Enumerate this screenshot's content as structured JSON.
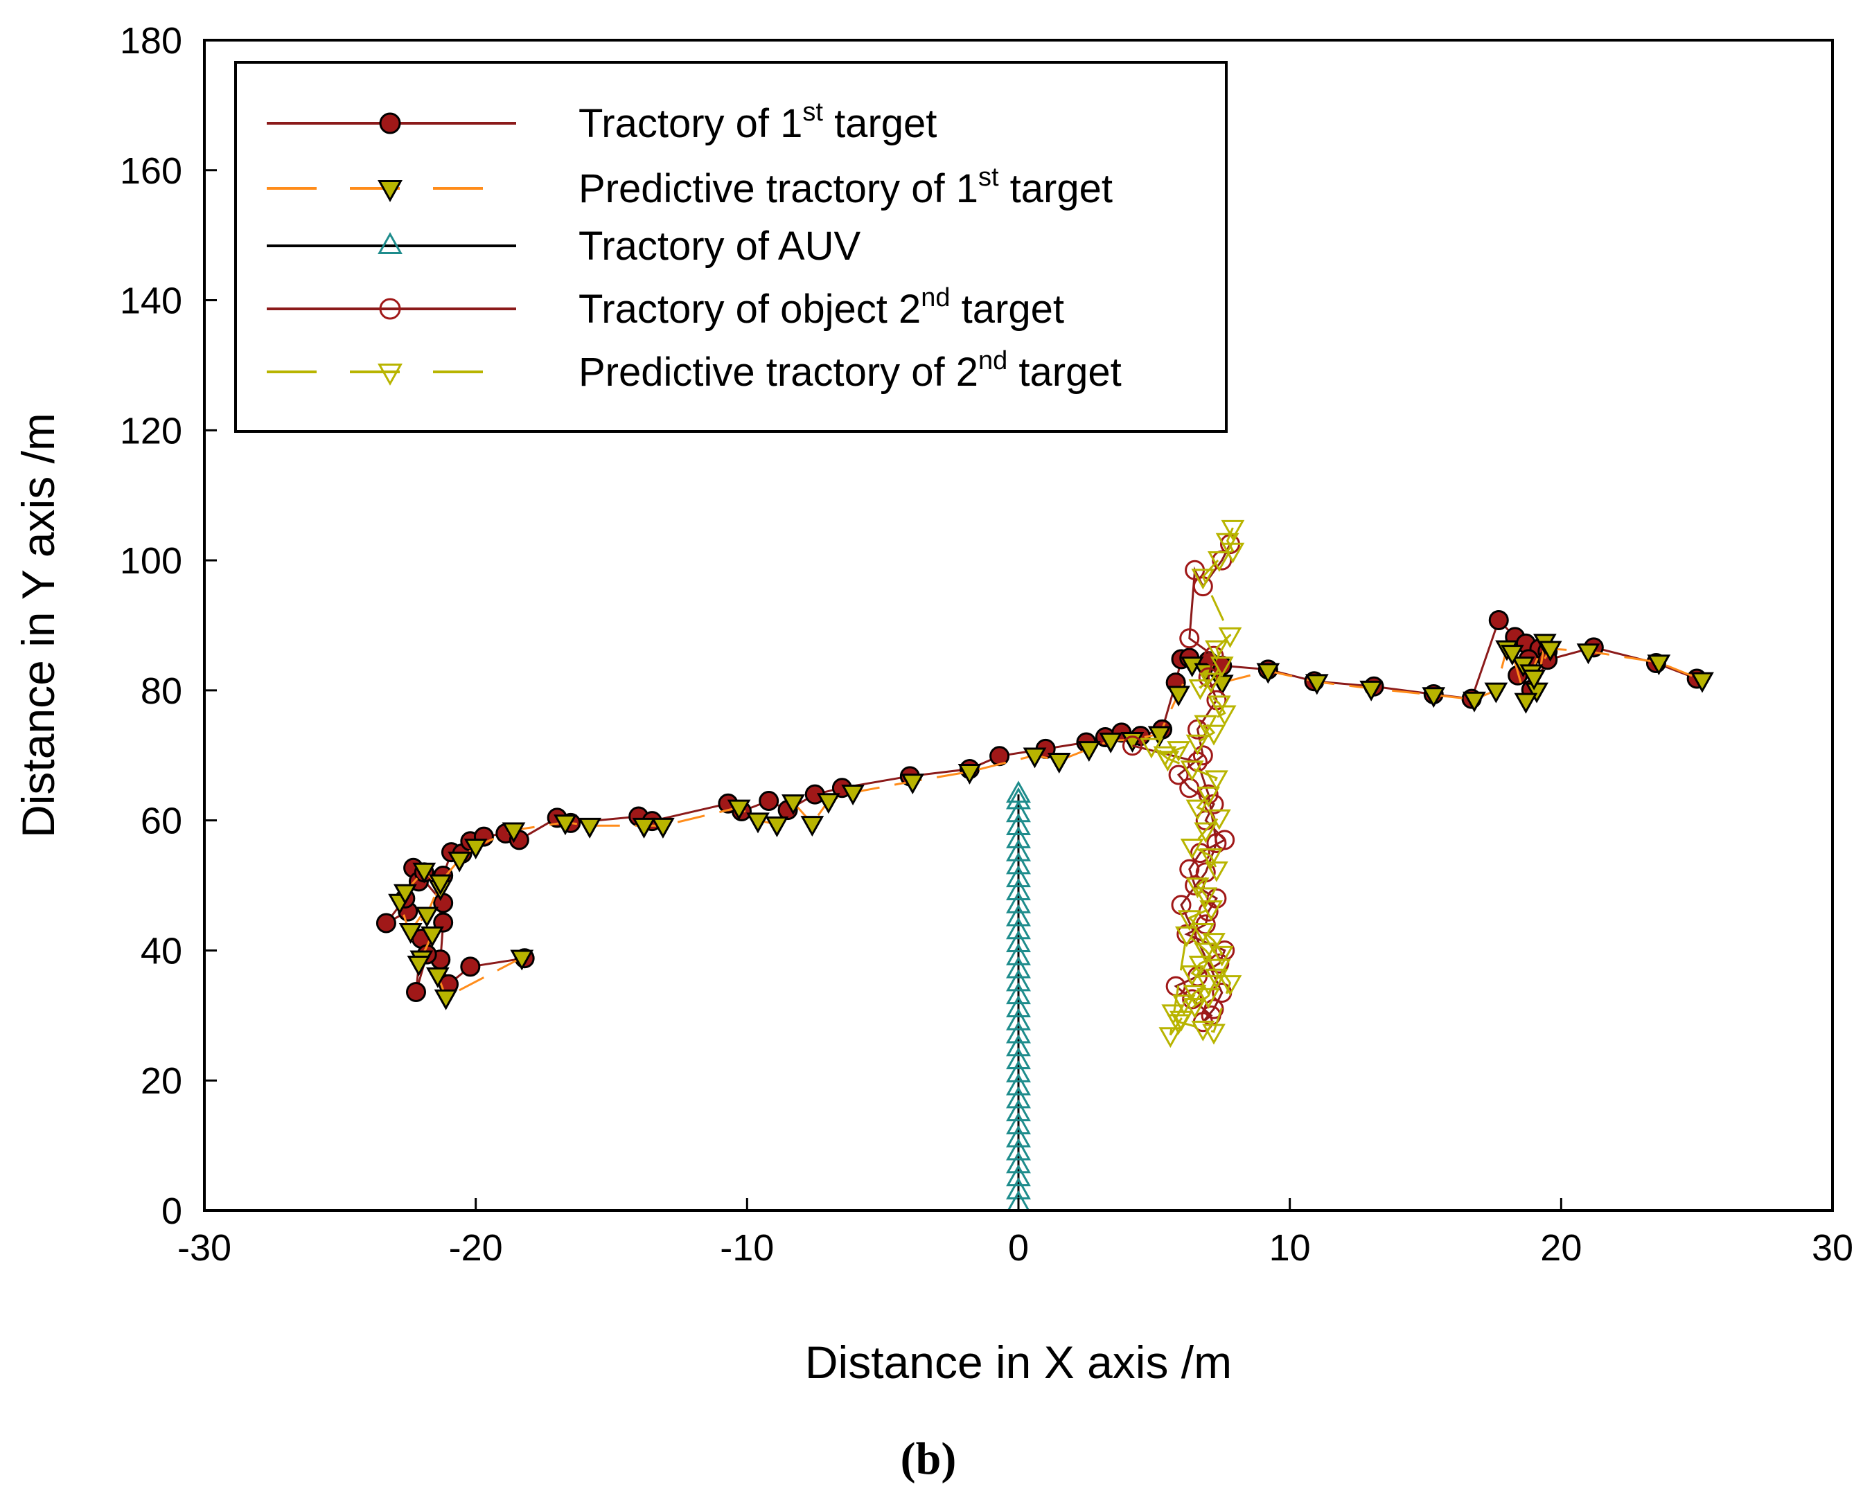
{
  "chart_data": {
    "type": "line",
    "title": "",
    "caption": "(b)",
    "xlabel": "Distance in X axis /m",
    "ylabel": "Distance in Y axis /m",
    "xlim": [
      -30,
      30
    ],
    "ylim": [
      0,
      180
    ],
    "xticks": [
      -30,
      -20,
      -10,
      0,
      10,
      20,
      30
    ],
    "yticks": [
      0,
      20,
      40,
      60,
      80,
      100,
      120,
      140,
      160,
      180
    ],
    "grid": false,
    "legend_position": "top-left",
    "colors": {
      "target1": "#8b1a1a",
      "target1_marker": "#a01818",
      "predict1": "#ff8c1a",
      "predict1_marker": "#b8b400",
      "auv": "#000000",
      "auv_marker": "#1e8c8c",
      "target2": "#8b1a1a",
      "target2_marker": "#a01818",
      "predict2": "#b8b400"
    },
    "series": [
      {
        "key": "target1",
        "name": "Tractory of 1",
        "sup": "st",
        "suffix": " target",
        "line": "solid",
        "marker": "circle-filled",
        "x": [
          -18.2,
          -20.2,
          -21.0,
          -21.3,
          -21.2,
          -22.0,
          -22.2,
          -21.8,
          -21.2,
          -22.3,
          -22.5,
          -23.3,
          -22.6,
          -22.1,
          -21.9,
          -21.2,
          -20.9,
          -20.5,
          -20.2,
          -19.7,
          -18.9,
          -18.4,
          -17.0,
          -16.5,
          -14.0,
          -13.5,
          -10.7,
          -10.2,
          -9.2,
          -8.5,
          -7.5,
          -6.5,
          -4.0,
          -1.8,
          -0.7,
          1.0,
          2.5,
          3.2,
          3.8,
          4.5,
          5.3,
          5.8,
          6.0,
          6.3,
          7.0,
          7.5,
          9.2,
          10.9,
          13.1,
          15.3,
          16.7,
          17.7,
          18.3,
          18.7,
          19.2,
          19.5,
          18.8,
          18.4,
          18.9,
          19.5,
          21.2,
          23.5,
          25.0
        ],
        "y": [
          38.8,
          37.5,
          34.8,
          38.6,
          44.3,
          41.8,
          33.6,
          39.4,
          47.3,
          52.7,
          46.0,
          44.2,
          48.0,
          50.6,
          52.0,
          51.5,
          55.1,
          54.9,
          56.8,
          57.5,
          58.0,
          57.0,
          60.4,
          59.6,
          60.6,
          59.9,
          62.6,
          61.4,
          63.0,
          61.6,
          64.0,
          65.0,
          66.8,
          67.9,
          69.9,
          71.0,
          72.0,
          72.8,
          73.5,
          73.0,
          74.0,
          81.2,
          84.8,
          85.0,
          84.5,
          83.8,
          83.2,
          81.4,
          80.6,
          79.4,
          78.7,
          90.8,
          88.2,
          87.2,
          86.4,
          86.0,
          84.8,
          82.3,
          80.1,
          84.7,
          86.6,
          84.2,
          81.8
        ]
      },
      {
        "key": "predict1",
        "name": "Predictive tractory of 1",
        "sup": "st",
        "suffix": " target",
        "line": "dash",
        "marker": "triangle-down-filled",
        "x": [
          -18.3,
          -21.1,
          -21.4,
          -22.0,
          -21.6,
          -22.1,
          -22.8,
          -22.6,
          -21.9,
          -21.3,
          -22.4,
          -21.8,
          -21.3,
          -20.6,
          -20.0,
          -18.6,
          -16.7,
          -15.8,
          -13.8,
          -13.1,
          -10.3,
          -9.6,
          -8.9,
          -8.3,
          -7.6,
          -7.0,
          -6.1,
          -3.9,
          -1.8,
          0.6,
          1.5,
          2.6,
          3.4,
          4.2,
          5.2,
          5.9,
          6.4,
          6.9,
          7.5,
          9.2,
          11.0,
          13.0,
          15.3,
          16.8,
          17.6,
          18.0,
          18.6,
          18.9,
          19.4,
          19.1,
          18.7,
          18.2,
          19.0,
          19.6,
          21.0,
          23.6,
          25.2
        ],
        "y": [
          38.9,
          32.8,
          36.2,
          38.8,
          42.5,
          38.0,
          47.5,
          49.0,
          52.3,
          49.6,
          43.0,
          45.5,
          50.5,
          54.0,
          56.0,
          58.5,
          59.7,
          59.2,
          59.2,
          59.2,
          62.0,
          60.0,
          59.4,
          62.8,
          59.5,
          63.0,
          64.3,
          66.0,
          67.5,
          70.0,
          69.2,
          71.0,
          72.3,
          72.4,
          73.3,
          79.5,
          84.0,
          83.0,
          81.2,
          83.0,
          81.3,
          80.3,
          79.3,
          78.6,
          80.0,
          86.5,
          84.0,
          82.8,
          87.5,
          80.0,
          78.4,
          85.8,
          82.0,
          86.4,
          86.0,
          84.3,
          81.6
        ]
      },
      {
        "key": "auv",
        "name": "Tractory of AUV",
        "sup": "",
        "suffix": "",
        "line": "solid",
        "marker": "triangle-up-open",
        "x": [
          0,
          0,
          0,
          0,
          0,
          0,
          0,
          0,
          0,
          0,
          0,
          0,
          0,
          0,
          0,
          0,
          0,
          0,
          0,
          0,
          0,
          0,
          0,
          0,
          0,
          0,
          0,
          0,
          0,
          0,
          0,
          0,
          0
        ],
        "y": [
          1,
          3,
          5,
          7,
          9,
          11,
          13,
          15,
          17,
          19,
          21,
          23,
          25,
          27,
          29,
          31,
          33,
          35,
          37,
          39,
          41,
          43,
          45,
          47,
          49,
          51,
          53,
          55,
          57,
          59,
          61,
          63,
          64
        ]
      },
      {
        "key": "target2",
        "name": "Tractory of object 2",
        "sup": "nd",
        "suffix": " target",
        "line": "solid",
        "marker": "circle-open",
        "x": [
          7.8,
          7.5,
          6.8,
          6.5,
          6.3,
          7.2,
          7.0,
          7.3,
          6.6,
          6.8,
          5.9,
          6.3,
          7.2,
          6.9,
          7.6,
          6.7,
          6.3,
          6.5,
          7.3,
          7.0,
          6.9,
          6.2,
          7.6,
          7.4,
          6.6,
          5.8,
          6.4,
          7.1,
          6.8,
          7.2,
          7.5,
          6.0,
          6.9,
          7.3,
          7.0,
          6.6,
          4.2
        ],
        "y": [
          102.5,
          100.0,
          96.0,
          98.5,
          88.0,
          85.3,
          82.0,
          78.5,
          74.0,
          70.0,
          67.0,
          65.0,
          62.5,
          60.0,
          57.0,
          55.0,
          52.5,
          50.0,
          48.0,
          46.0,
          44.0,
          42.5,
          40.0,
          38.0,
          36.0,
          34.5,
          32.5,
          30.0,
          29.0,
          31.0,
          33.5,
          47.0,
          52.0,
          56.5,
          64.0,
          69.0,
          71.5
        ]
      },
      {
        "key": "predict2",
        "name": "Predictive tractory of 2",
        "sup": "nd",
        "suffix": " target",
        "line": "dash",
        "marker": "triangle-down-open",
        "x": [
          7.9,
          7.7,
          7.9,
          7.4,
          6.8,
          7.8,
          7.3,
          7.5,
          7.1,
          6.7,
          7.4,
          7.6,
          6.9,
          7.2,
          6.6,
          5.9,
          5.4,
          4.9,
          5.5,
          6.4,
          7.3,
          7.0,
          6.6,
          7.4,
          6.9,
          6.4,
          7.1,
          7.3,
          6.6,
          6.9,
          7.1,
          6.3,
          6.8,
          7.2,
          7.5,
          6.7,
          6.4,
          7.0,
          6.5,
          6.1,
          5.7,
          5.9,
          6.8,
          7.2,
          7.8,
          7.4,
          6.9,
          6.2,
          5.6,
          6.0,
          6.5,
          7.0,
          7.3
        ],
        "y": [
          105.0,
          103.0,
          101.5,
          100.2,
          97.5,
          88.5,
          86.5,
          84.0,
          81.5,
          80.5,
          78.0,
          76.5,
          75.0,
          73.5,
          72.0,
          71.0,
          70.2,
          71.5,
          69.5,
          68.0,
          66.5,
          64.0,
          62.0,
          60.5,
          58.5,
          56.0,
          54.5,
          52.5,
          50.0,
          48.5,
          46.5,
          45.0,
          43.0,
          41.5,
          39.5,
          38.0,
          36.5,
          35.0,
          33.5,
          32.0,
          30.5,
          29.0,
          28.0,
          27.5,
          35.0,
          37.5,
          40.0,
          42.5,
          27.0,
          29.5,
          31.5,
          33.0,
          36.0
        ]
      }
    ]
  }
}
